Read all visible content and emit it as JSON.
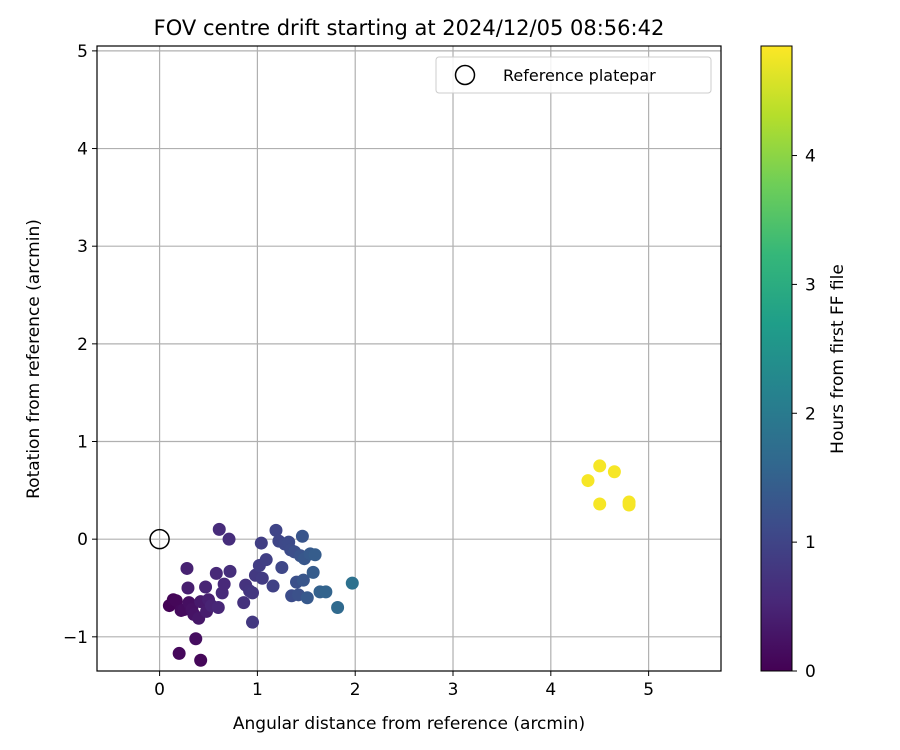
{
  "chart_data": {
    "type": "scatter",
    "title": "FOV centre drift starting at 2024/12/05 08:56:42",
    "xlabel": "Angular distance from reference (arcmin)",
    "ylabel": "Rotation from reference (arcmin)",
    "xlim": [
      -0.64,
      5.74
    ],
    "ylim": [
      -1.35,
      5.05
    ],
    "xticks": [
      0,
      1,
      2,
      3,
      4,
      5
    ],
    "yticks": [
      -1,
      0,
      1,
      2,
      3,
      4,
      5
    ],
    "grid": true,
    "legend": {
      "position": "top-right",
      "entries": [
        "Reference platepar"
      ]
    },
    "reference_point": {
      "x": 0,
      "y": 0,
      "label": "Reference platepar"
    },
    "colorbar": {
      "label": "Hours from first FF file",
      "colormap": "viridis",
      "range": [
        0,
        4.85
      ],
      "ticks": [
        0,
        1,
        2,
        3,
        4
      ],
      "stops": [
        "#440154",
        "#482878",
        "#3e4989",
        "#31688e",
        "#26828e",
        "#1f9e89",
        "#35b779",
        "#6ece58",
        "#b5de2b",
        "#fde725"
      ]
    },
    "points": [
      {
        "x": 0.1,
        "y": -0.68,
        "t": 0.03
      },
      {
        "x": 0.14,
        "y": -0.62,
        "t": 0.05
      },
      {
        "x": 0.17,
        "y": -0.63,
        "t": 0.08
      },
      {
        "x": 0.2,
        "y": -1.17,
        "t": 0.1
      },
      {
        "x": 0.22,
        "y": -0.73,
        "t": 0.12
      },
      {
        "x": 0.25,
        "y": -0.72,
        "t": 0.15
      },
      {
        "x": 0.28,
        "y": -0.3,
        "t": 0.45
      },
      {
        "x": 0.29,
        "y": -0.5,
        "t": 0.4
      },
      {
        "x": 0.3,
        "y": -0.65,
        "t": 0.2
      },
      {
        "x": 0.33,
        "y": -0.72,
        "t": 0.22
      },
      {
        "x": 0.35,
        "y": -0.77,
        "t": 0.25
      },
      {
        "x": 0.37,
        "y": -1.02,
        "t": 0.18
      },
      {
        "x": 0.4,
        "y": -0.81,
        "t": 0.3
      },
      {
        "x": 0.42,
        "y": -0.64,
        "t": 0.35
      },
      {
        "x": 0.42,
        "y": -1.24,
        "t": 0.08
      },
      {
        "x": 0.47,
        "y": -0.49,
        "t": 0.5
      },
      {
        "x": 0.48,
        "y": -0.74,
        "t": 0.38
      },
      {
        "x": 0.5,
        "y": -0.62,
        "t": 0.42
      },
      {
        "x": 0.53,
        "y": -0.68,
        "t": 0.48
      },
      {
        "x": 0.58,
        "y": -0.35,
        "t": 0.55
      },
      {
        "x": 0.6,
        "y": -0.7,
        "t": 0.52
      },
      {
        "x": 0.61,
        "y": 0.1,
        "t": 0.6
      },
      {
        "x": 0.64,
        "y": -0.55,
        "t": 0.58
      },
      {
        "x": 0.66,
        "y": -0.46,
        "t": 0.56
      },
      {
        "x": 0.71,
        "y": 0.0,
        "t": 0.62
      },
      {
        "x": 0.72,
        "y": -0.33,
        "t": 0.64
      },
      {
        "x": 0.86,
        "y": -0.65,
        "t": 0.7
      },
      {
        "x": 0.88,
        "y": -0.47,
        "t": 0.72
      },
      {
        "x": 0.92,
        "y": -0.53,
        "t": 0.75
      },
      {
        "x": 0.95,
        "y": -0.55,
        "t": 0.78
      },
      {
        "x": 0.95,
        "y": -0.85,
        "t": 0.8
      },
      {
        "x": 0.98,
        "y": -0.37,
        "t": 0.82
      },
      {
        "x": 1.02,
        "y": -0.27,
        "t": 0.88
      },
      {
        "x": 1.04,
        "y": -0.04,
        "t": 0.9
      },
      {
        "x": 1.05,
        "y": -0.4,
        "t": 0.85
      },
      {
        "x": 1.09,
        "y": -0.21,
        "t": 0.92
      },
      {
        "x": 1.16,
        "y": -0.48,
        "t": 0.95
      },
      {
        "x": 1.19,
        "y": 0.09,
        "t": 1.0
      },
      {
        "x": 1.22,
        "y": -0.02,
        "t": 1.02
      },
      {
        "x": 1.25,
        "y": -0.29,
        "t": 1.05
      },
      {
        "x": 1.28,
        "y": -0.05,
        "t": 1.08
      },
      {
        "x": 1.32,
        "y": -0.03,
        "t": 1.1
      },
      {
        "x": 1.34,
        "y": -0.11,
        "t": 1.12
      },
      {
        "x": 1.35,
        "y": -0.58,
        "t": 1.15
      },
      {
        "x": 1.38,
        "y": -0.13,
        "t": 1.18
      },
      {
        "x": 1.4,
        "y": -0.44,
        "t": 1.2
      },
      {
        "x": 1.42,
        "y": -0.57,
        "t": 1.22
      },
      {
        "x": 1.44,
        "y": -0.17,
        "t": 1.25
      },
      {
        "x": 1.46,
        "y": 0.03,
        "t": 1.28
      },
      {
        "x": 1.47,
        "y": -0.42,
        "t": 1.3
      },
      {
        "x": 1.48,
        "y": -0.2,
        "t": 1.32
      },
      {
        "x": 1.51,
        "y": -0.6,
        "t": 1.35
      },
      {
        "x": 1.54,
        "y": -0.15,
        "t": 1.38
      },
      {
        "x": 1.57,
        "y": -0.34,
        "t": 1.4
      },
      {
        "x": 1.59,
        "y": -0.16,
        "t": 1.42
      },
      {
        "x": 1.64,
        "y": -0.54,
        "t": 1.5
      },
      {
        "x": 1.7,
        "y": -0.54,
        "t": 1.55
      },
      {
        "x": 1.82,
        "y": -0.7,
        "t": 1.65
      },
      {
        "x": 1.97,
        "y": -0.45,
        "t": 1.8
      },
      {
        "x": 4.38,
        "y": 0.6,
        "t": 4.8
      },
      {
        "x": 4.5,
        "y": 0.75,
        "t": 4.8
      },
      {
        "x": 4.5,
        "y": 0.36,
        "t": 4.8
      },
      {
        "x": 4.65,
        "y": 0.69,
        "t": 4.8
      },
      {
        "x": 4.8,
        "y": 0.38,
        "t": 4.8
      },
      {
        "x": 4.8,
        "y": 0.35,
        "t": 4.8
      }
    ]
  }
}
